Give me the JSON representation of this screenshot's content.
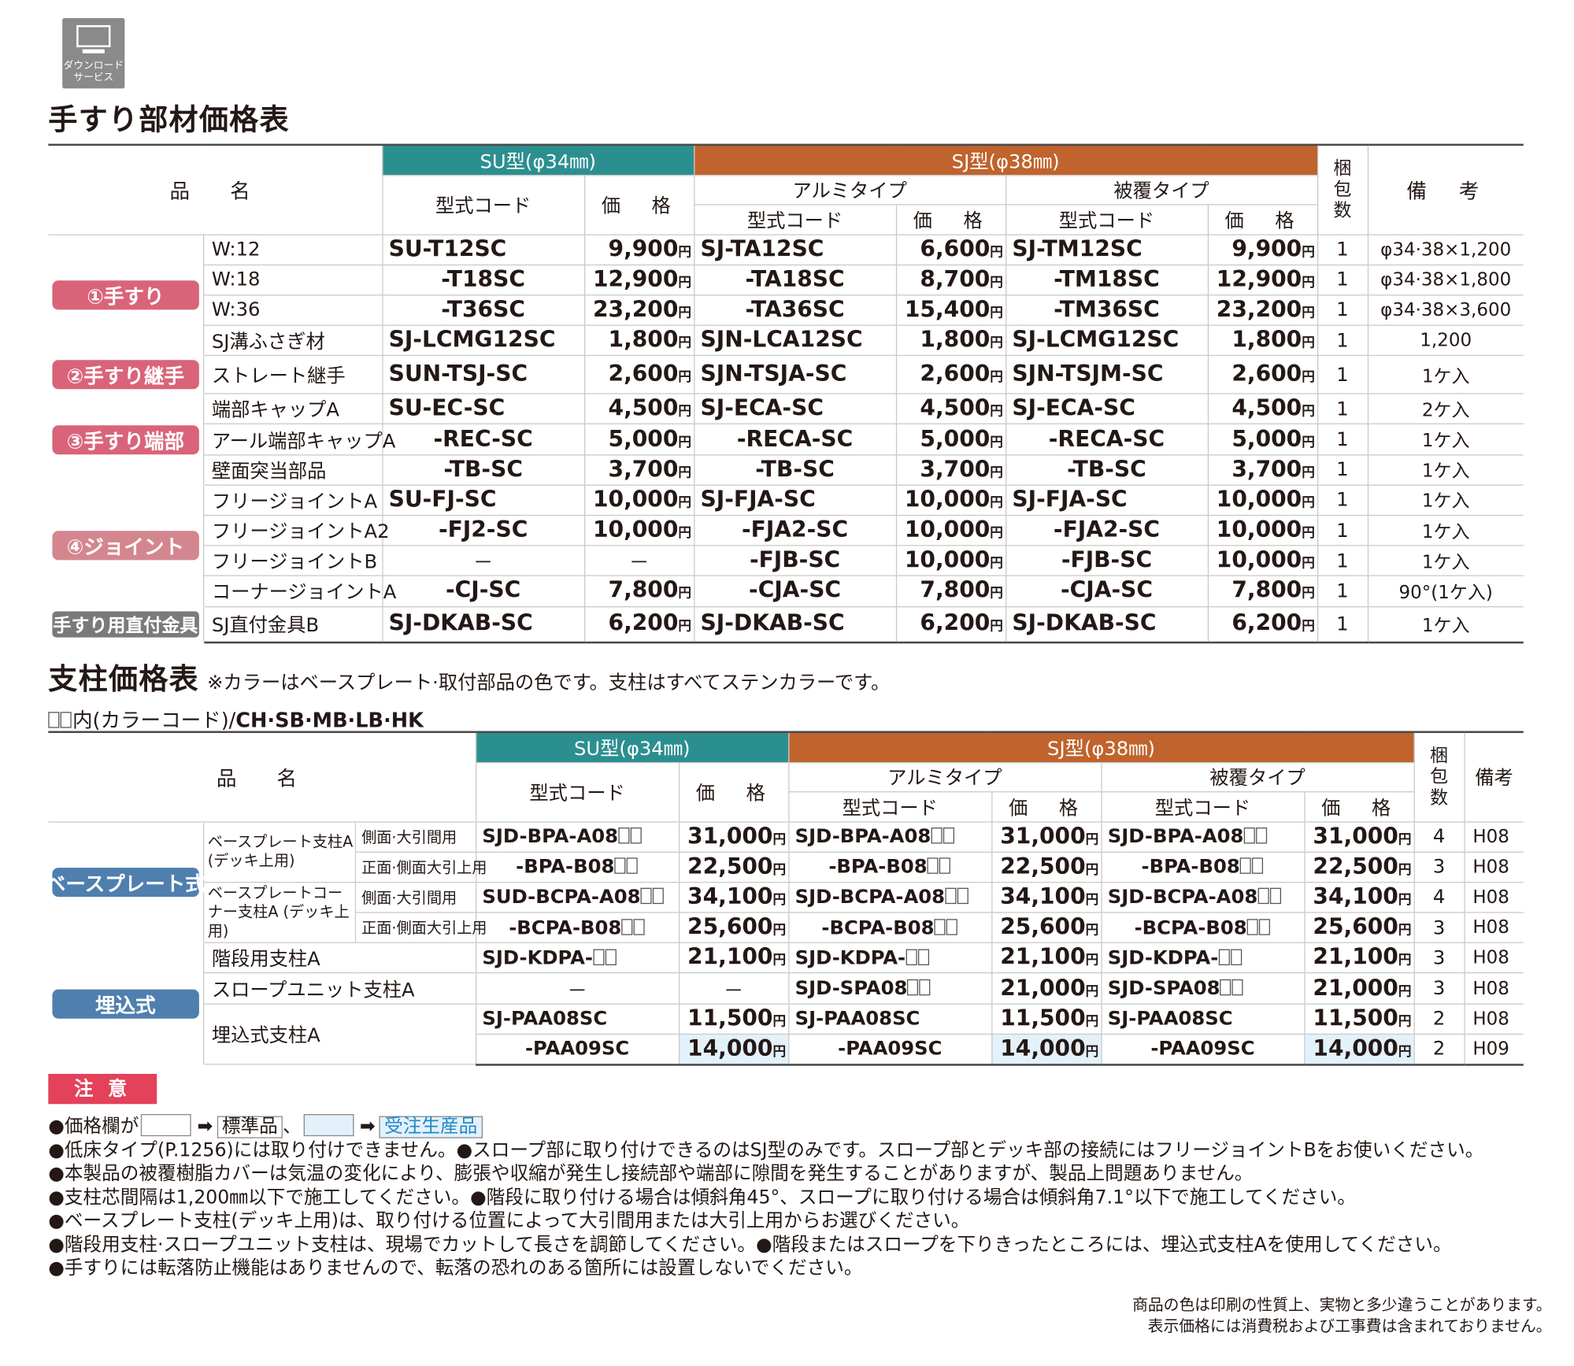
{
  "download_icon": {
    "line1": "ダウンロード",
    "line2": "サービス"
  },
  "handrail": {
    "title": "手すり部材価格表",
    "header": {
      "name": "品　名",
      "su": "SU型(φ34㎜)",
      "sj": "SJ型(φ38㎜)",
      "alumi": "アルミタイプ",
      "hifuku": "被覆タイプ",
      "code": "型式コード",
      "price": "価　格",
      "pack": "梱包数",
      "remarks": "備　考"
    },
    "yen": "円",
    "categories": [
      "①手すり",
      "②手すり継手",
      "③手すり端部",
      "④ジョイント",
      "手すり用直付金具"
    ],
    "rows": [
      {
        "name": "W:12",
        "su_code": "SU-T12SC",
        "su_price": "9,900",
        "al_code": "SJ-TA12SC",
        "al_price": "6,600",
        "hf_code": "SJ-TM12SC",
        "hf_price": "9,900",
        "qty": "1",
        "remarks": "φ34·38×1,200"
      },
      {
        "name": "W:18",
        "su_code": "-T18SC",
        "su_price": "12,900",
        "al_code": "-TA18SC",
        "al_price": "8,700",
        "hf_code": "-TM18SC",
        "hf_price": "12,900",
        "qty": "1",
        "remarks": "φ34·38×1,800"
      },
      {
        "name": "W:36",
        "su_code": "-T36SC",
        "su_price": "23,200",
        "al_code": "-TA36SC",
        "al_price": "15,400",
        "hf_code": "-TM36SC",
        "hf_price": "23,200",
        "qty": "1",
        "remarks": "φ34·38×3,600"
      },
      {
        "name": "SJ溝ふさぎ材",
        "su_code": "SJ-LCMG12SC",
        "su_price": "1,800",
        "al_code": "SJN-LCA12SC",
        "al_price": "1,800",
        "hf_code": "SJ-LCMG12SC",
        "hf_price": "1,800",
        "qty": "1",
        "remarks": "1,200"
      },
      {
        "name": "ストレート継手",
        "su_code": "SUN-TSJ-SC",
        "su_price": "2,600",
        "al_code": "SJN-TSJA-SC",
        "al_price": "2,600",
        "hf_code": "SJN-TSJM-SC",
        "hf_price": "2,600",
        "qty": "1",
        "remarks": "1ケ入"
      },
      {
        "name": "端部キャップA",
        "su_code": "SU-EC-SC",
        "su_price": "4,500",
        "al_code": "SJ-ECA-SC",
        "al_price": "4,500",
        "hf_code": "SJ-ECA-SC",
        "hf_price": "4,500",
        "qty": "1",
        "remarks": "2ケ入"
      },
      {
        "name": "アール端部キャップA",
        "su_code": "-REC-SC",
        "su_price": "5,000",
        "al_code": "-RECA-SC",
        "al_price": "5,000",
        "hf_code": "-RECA-SC",
        "hf_price": "5,000",
        "qty": "1",
        "remarks": "1ケ入"
      },
      {
        "name": "壁面突当部品",
        "su_code": "-TB-SC",
        "su_price": "3,700",
        "al_code": "-TB-SC",
        "al_price": "3,700",
        "hf_code": "-TB-SC",
        "hf_price": "3,700",
        "qty": "1",
        "remarks": "1ケ入"
      },
      {
        "name": "フリージョイントA",
        "su_code": "SU-FJ-SC",
        "su_price": "10,000",
        "al_code": "SJ-FJA-SC",
        "al_price": "10,000",
        "hf_code": "SJ-FJA-SC",
        "hf_price": "10,000",
        "qty": "1",
        "remarks": "1ケ入"
      },
      {
        "name": "フリージョイントA2",
        "su_code": "-FJ2-SC",
        "su_price": "10,000",
        "al_code": "-FJA2-SC",
        "al_price": "10,000",
        "hf_code": "-FJA2-SC",
        "hf_price": "10,000",
        "qty": "1",
        "remarks": "1ケ入"
      },
      {
        "name": "フリージョイントB",
        "su_code": "－",
        "su_price": "－",
        "al_code": "-FJB-SC",
        "al_price": "10,000",
        "hf_code": "-FJB-SC",
        "hf_price": "10,000",
        "qty": "1",
        "remarks": "1ケ入"
      },
      {
        "name": "コーナージョイントA",
        "su_code": "-CJ-SC",
        "su_price": "7,800",
        "al_code": "-CJA-SC",
        "al_price": "7,800",
        "hf_code": "-CJA-SC",
        "hf_price": "7,800",
        "qty": "1",
        "remarks": "90°(1ケ入)"
      },
      {
        "name": "SJ直付金具B",
        "su_code": "SJ-DKAB-SC",
        "su_price": "6,200",
        "al_code": "SJ-DKAB-SC",
        "al_price": "6,200",
        "hf_code": "SJ-DKAB-SC",
        "hf_price": "6,200",
        "qty": "1",
        "remarks": "1ケ入"
      }
    ]
  },
  "post": {
    "title": "支柱価格表",
    "subnote": "※カラーはベースプレート·取付部品の色です。支柱はすべてステンカラーです。",
    "color_code_prefix": "内(カラーコード)/",
    "color_codes": "CH·SB·MB·LB·HK",
    "header": {
      "name": "品　名",
      "su": "SU型(φ34㎜)",
      "sj": "SJ型(φ38㎜)",
      "alumi": "アルミタイプ",
      "hifuku": "被覆タイプ",
      "code": "型式コード",
      "price": "価　格",
      "pack": "梱包数",
      "remarks": "備考"
    },
    "categories": [
      "ベースプレート式",
      "埋込式"
    ],
    "items": {
      "bpa": "ベースプレート支柱A (デッキ上用)",
      "bcpa": "ベースプレートコーナー支柱A (デッキ上用)",
      "sub_side": "側面·大引間用",
      "sub_front": "正面·側面大引上用",
      "kdpa": "階段用支柱A",
      "spa": "スロープユニット支柱A",
      "paa": "埋込式支柱A"
    },
    "rows": [
      {
        "su_code": "SJD-BPA-A08",
        "su_price": "31,000",
        "al_code": "SJD-BPA-A08",
        "al_price": "31,000",
        "hf_code": "SJD-BPA-A08",
        "hf_price": "31,000",
        "qty": "4",
        "remarks": "H08"
      },
      {
        "su_code": "-BPA-B08",
        "su_price": "22,500",
        "al_code": "-BPA-B08",
        "al_price": "22,500",
        "hf_code": "-BPA-B08",
        "hf_price": "22,500",
        "qty": "3",
        "remarks": "H08"
      },
      {
        "su_code": "SUD-BCPA-A08",
        "su_price": "34,100",
        "al_code": "SJD-BCPA-A08",
        "al_price": "34,100",
        "hf_code": "SJD-BCPA-A08",
        "hf_price": "34,100",
        "qty": "4",
        "remarks": "H08"
      },
      {
        "su_code": "-BCPA-B08",
        "su_price": "25,600",
        "al_code": "-BCPA-B08",
        "al_price": "25,600",
        "hf_code": "-BCPA-B08",
        "hf_price": "25,600",
        "qty": "3",
        "remarks": "H08"
      },
      {
        "su_code": "SJD-KDPA-",
        "su_price": "21,100",
        "al_code": "SJD-KDPA-",
        "al_price": "21,100",
        "hf_code": "SJD-KDPA-",
        "hf_price": "21,100",
        "qty": "3",
        "remarks": "H08"
      },
      {
        "su_code": "－",
        "su_price": "－",
        "al_code": "SJD-SPA08",
        "al_price": "21,000",
        "hf_code": "SJD-SPA08",
        "hf_price": "21,000",
        "qty": "3",
        "remarks": "H08"
      },
      {
        "su_code": "SJ-PAA08SC",
        "su_price": "11,500",
        "al_code": "SJ-PAA08SC",
        "al_price": "11,500",
        "hf_code": "SJ-PAA08SC",
        "hf_price": "11,500",
        "qty": "2",
        "remarks": "H08"
      },
      {
        "su_code": "-PAA09SC",
        "su_price": "14,000",
        "al_code": "-PAA09SC",
        "al_price": "14,000",
        "hf_code": "-PAA09SC",
        "hf_price": "14,000",
        "qty": "2",
        "remarks": "H09"
      }
    ]
  },
  "caution": {
    "badge": "注 意",
    "legend_prefix": "●価格欄が",
    "legend_standard": "標準品",
    "legend_order": "受注生産品",
    "legend_sep": "、",
    "notes": [
      "●低床タイプ(P.1256)には取り付けできません。●スロープ部に取り付けできるのはSJ型のみです。スロープ部とデッキ部の接続にはフリージョイントBをお使いください。",
      "●本製品の被覆樹脂カバーは気温の変化により、膨張や収縮が発生し接続部や端部に隙間を発生することがありますが、製品上問題ありません。",
      "●支柱芯間隔は1,200㎜以下で施工してください。●階段に取り付ける場合は傾斜角45°、スロープに取り付ける場合は傾斜角7.1°以下で施工してください。",
      "●ベースプレート支柱(デッキ上用)は、取り付ける位置によって大引間用または大引上用からお選びください。",
      "●階段用支柱·スロープユニット支柱は、現場でカットして長さを調節してください。●階段またはスロープを下りきったところには、埋込式支柱Aを使用してください。",
      "●手すりには転落防止機能はありませんので、転落の恐れのある箇所には設置しないでください。"
    ]
  },
  "footer": [
    "商品の色は印刷の性質上、実物と多少違うことがあります。",
    "表示価格には消費税および工事費は含まれておりません。"
  ]
}
